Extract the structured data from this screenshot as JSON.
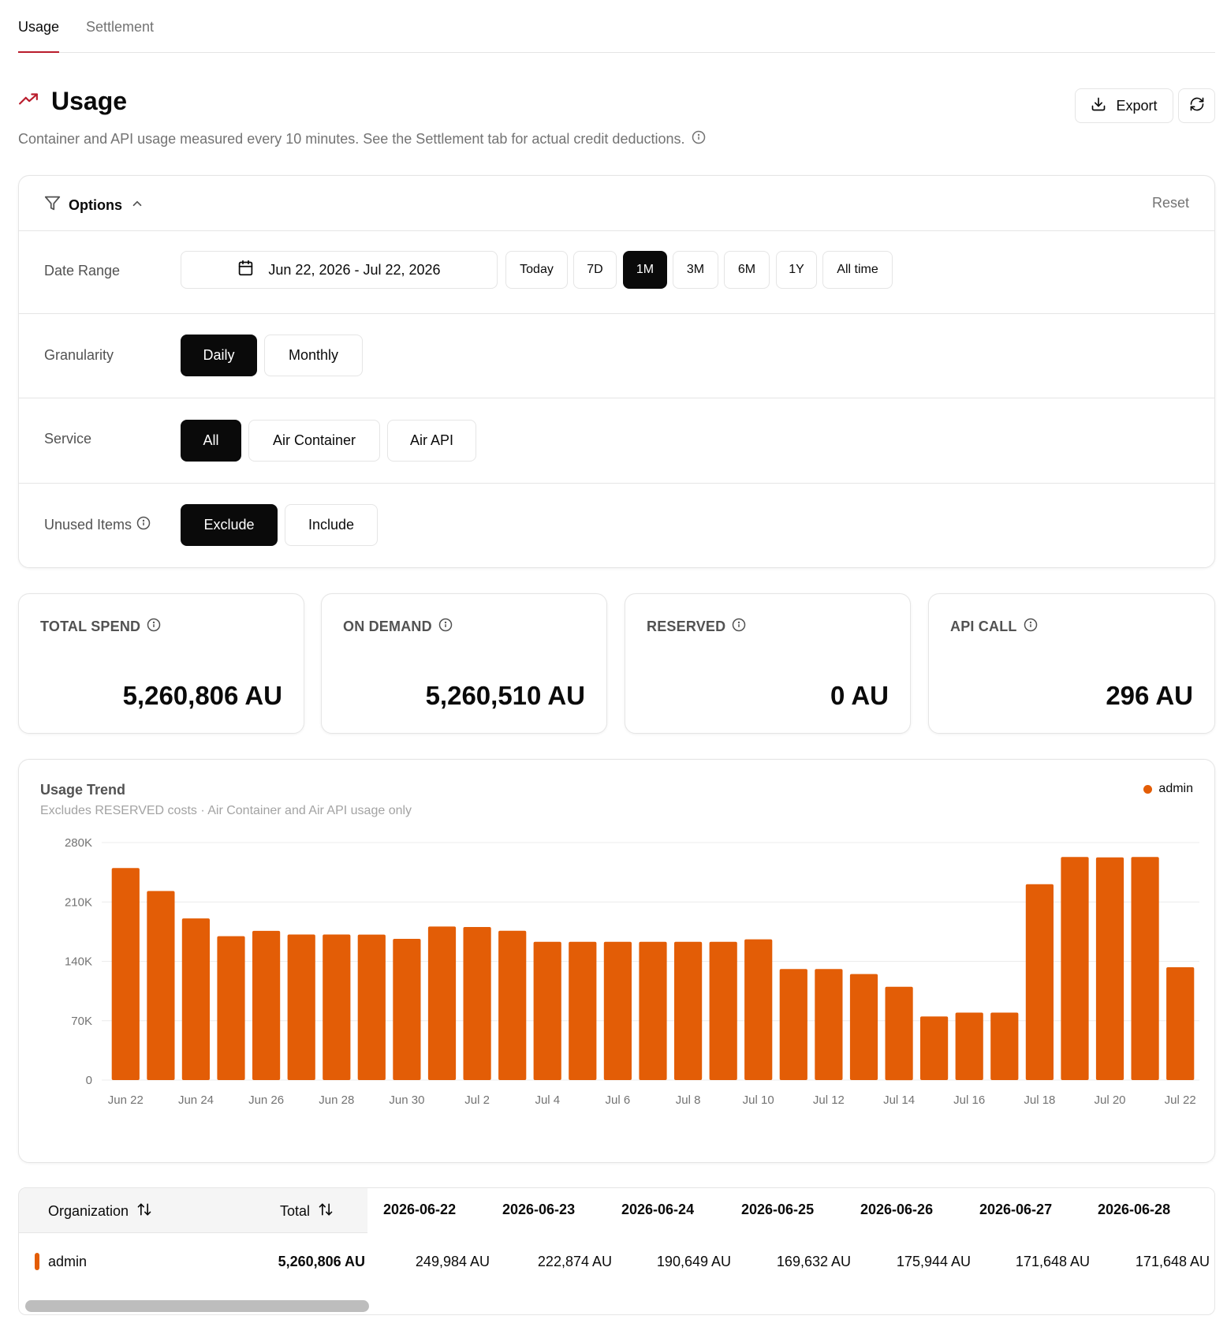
{
  "tabs": [
    {
      "label": "Usage",
      "active": true
    },
    {
      "label": "Settlement",
      "active": false
    }
  ],
  "header": {
    "title": "Usage",
    "subtitle": "Container and API usage measured every 10 minutes. See the Settlement tab for actual credit deductions.",
    "export_label": "Export",
    "icons": {
      "title": "trend-up-icon",
      "info": "info-icon",
      "export": "download-icon",
      "refresh": "refresh-icon"
    }
  },
  "options": {
    "title": "Options",
    "reset_label": "Reset",
    "date_range": {
      "label": "Date Range",
      "value": "Jun 22, 2026 - Jul 22, 2026",
      "presets": [
        {
          "label": "Today",
          "selected": false
        },
        {
          "label": "7D",
          "selected": false
        },
        {
          "label": "1M",
          "selected": true
        },
        {
          "label": "3M",
          "selected": false
        },
        {
          "label": "6M",
          "selected": false
        },
        {
          "label": "1Y",
          "selected": false
        },
        {
          "label": "All time",
          "selected": false
        }
      ]
    },
    "granularity": {
      "label": "Granularity",
      "choices": [
        {
          "label": "Daily",
          "selected": true
        },
        {
          "label": "Monthly",
          "selected": false
        }
      ]
    },
    "service": {
      "label": "Service",
      "choices": [
        {
          "label": "All",
          "selected": true
        },
        {
          "label": "Air Container",
          "selected": false
        },
        {
          "label": "Air API",
          "selected": false
        }
      ]
    },
    "unused_items": {
      "label": "Unused Items",
      "choices": [
        {
          "label": "Exclude",
          "selected": true
        },
        {
          "label": "Include",
          "selected": false
        }
      ]
    }
  },
  "stats": [
    {
      "label": "TOTAL SPEND",
      "value": "5,260,806 AU"
    },
    {
      "label": "ON DEMAND",
      "value": "5,260,510 AU"
    },
    {
      "label": "RESERVED",
      "value": "0 AU"
    },
    {
      "label": "API CALL",
      "value": "296 AU"
    }
  ],
  "chart": {
    "title": "Usage Trend",
    "subtitle": "Excludes RESERVED costs · Air Container and Air API usage only",
    "legend": "admin"
  },
  "chart_data": {
    "type": "bar",
    "categories": [
      "Jun 22",
      "Jun 23",
      "Jun 24",
      "Jun 25",
      "Jun 26",
      "Jun 27",
      "Jun 28",
      "Jun 29",
      "Jun 30",
      "Jul 1",
      "Jul 2",
      "Jul 3",
      "Jul 4",
      "Jul 5",
      "Jul 6",
      "Jul 7",
      "Jul 8",
      "Jul 9",
      "Jul 10",
      "Jul 11",
      "Jul 12",
      "Jul 13",
      "Jul 14",
      "Jul 15",
      "Jul 16",
      "Jul 17",
      "Jul 18",
      "Jul 19",
      "Jul 20",
      "Jul 21",
      "Jul 22"
    ],
    "x_tick_labels": [
      "Jun 22",
      "Jun 24",
      "Jun 26",
      "Jun 28",
      "Jun 30",
      "Jul 2",
      "Jul 4",
      "Jul 6",
      "Jul 8",
      "Jul 10",
      "Jul 12",
      "Jul 14",
      "Jul 16",
      "Jul 18",
      "Jul 20",
      "Jul 22"
    ],
    "series": [
      {
        "name": "admin",
        "values": [
          249984,
          222874,
          190649,
          169632,
          175944,
          171648,
          171648,
          171500,
          166500,
          181000,
          180500,
          176000,
          163000,
          163000,
          163000,
          163000,
          163000,
          163000,
          166000,
          131000,
          131000,
          125000,
          110000,
          75000,
          79500,
          79500,
          231000,
          263000,
          262500,
          263000,
          133000
        ]
      }
    ],
    "y_ticks": [
      "0",
      "70K",
      "140K",
      "210K",
      "280K"
    ],
    "ylim": [
      0,
      280000
    ],
    "grid": true,
    "legend_position": "top-right",
    "color": "#e35d06"
  },
  "table": {
    "headers": {
      "organization": "Organization",
      "total": "Total"
    },
    "date_columns": [
      "2026-06-22",
      "2026-06-23",
      "2026-06-24",
      "2026-06-25",
      "2026-06-26",
      "2026-06-27",
      "2026-06-28"
    ],
    "rows": [
      {
        "organization": "admin",
        "total": "5,260,806 AU",
        "values": [
          "249,984 AU",
          "222,874 AU",
          "190,649 AU",
          "169,632 AU",
          "175,944 AU",
          "171,648 AU",
          "171,648 AU"
        ]
      }
    ]
  },
  "colors": {
    "accent": "#e35d06",
    "tab_underline": "#b91c2c",
    "selected_bg": "#0a0a0a",
    "trend_icon": "#b91c2c"
  }
}
